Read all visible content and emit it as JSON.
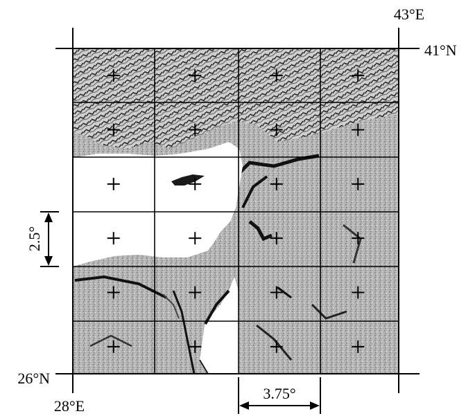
{
  "map": {
    "labels": {
      "top_right_lon": "43°E",
      "top_right_lat": "41°N",
      "bottom_left_lat": "26°N",
      "bottom_left_lon": "28°E",
      "lat_spacing": "2.5°",
      "lon_spacing": "3.75°"
    },
    "grid": {
      "columns": 4,
      "rows": 6,
      "lon_range": [
        28,
        43
      ],
      "lat_range": [
        26,
        41
      ]
    },
    "colors": {
      "frame": "#000000",
      "sea": "#ffffff",
      "terrain": "#a8a8a8",
      "terrain_dark": "#3a3a3a"
    }
  }
}
